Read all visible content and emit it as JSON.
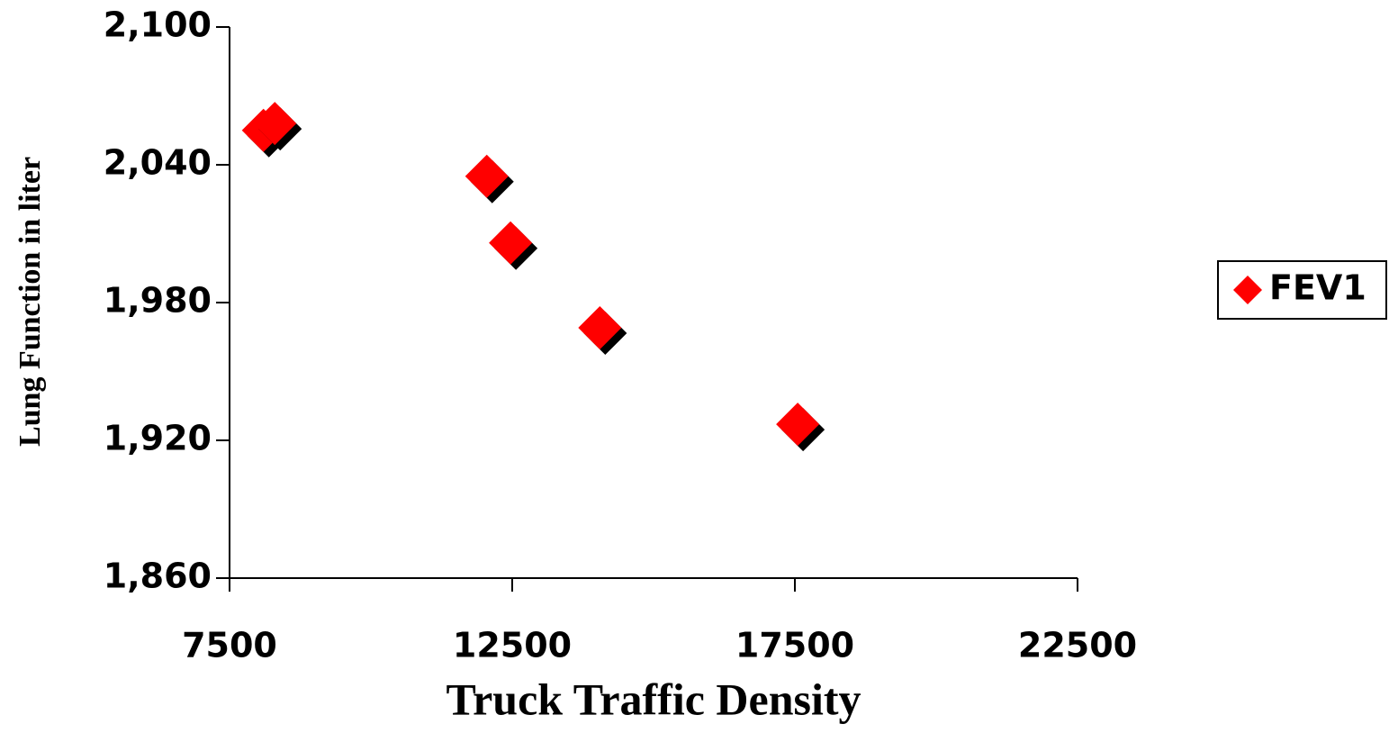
{
  "chart_data": {
    "type": "scatter",
    "x_label": "Truck Traffic Density",
    "y_label": "Lung Function in liter",
    "series": [
      {
        "name": "FEV1",
        "color": "#ff0000",
        "x": [
          8100,
          8300,
          12050,
          12470,
          14050,
          17550
        ],
        "values": [
          2055,
          2058,
          2035,
          2006,
          1969,
          1927
        ]
      }
    ],
    "xlim": [
      7500,
      22500
    ],
    "xticks": [
      7500,
      12500,
      17500,
      22500
    ],
    "ylim": [
      1860,
      2100
    ],
    "yticks": [
      {
        "value": 1860,
        "label": "1,860"
      },
      {
        "value": 1920,
        "label": "1,920"
      },
      {
        "value": 1980,
        "label": "1,980"
      },
      {
        "value": 2040,
        "label": "2,040"
      },
      {
        "value": 2100,
        "label": "2,100"
      }
    ],
    "grid": false,
    "legend": "right"
  }
}
